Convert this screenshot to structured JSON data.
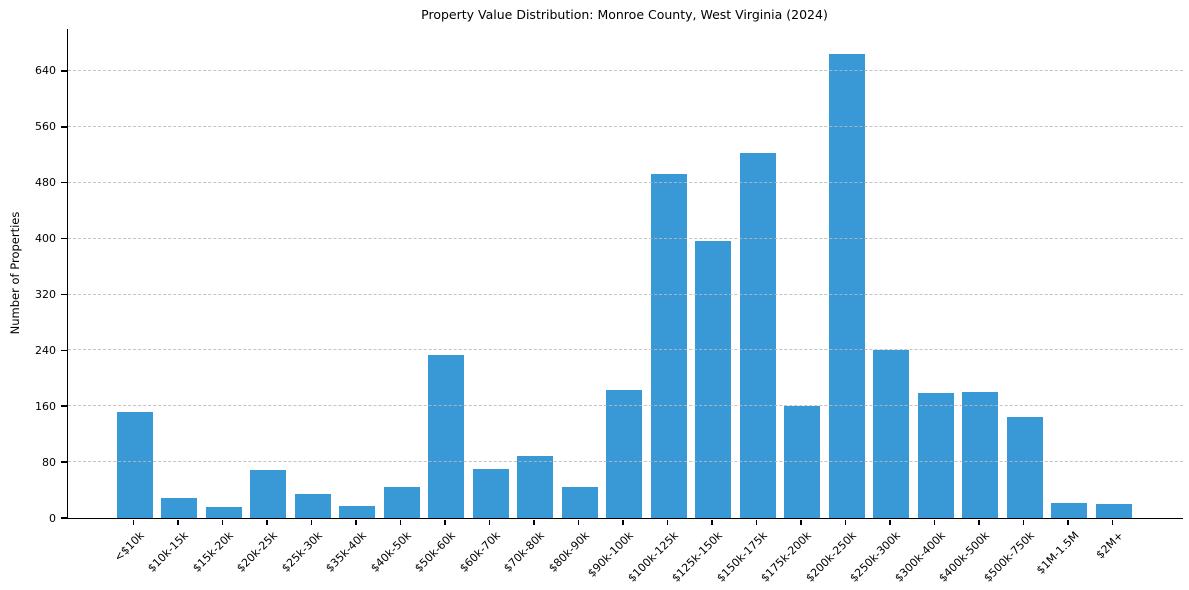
{
  "chart_data": {
    "type": "bar",
    "title": "Property Value Distribution: Monroe County, West Virginia (2024)",
    "ylabel": "Number of Properties",
    "categories": [
      "<$10k",
      "$10k-15k",
      "$15k-20k",
      "$20k-25k",
      "$25k-30k",
      "$35k-40k",
      "$40k-50k",
      "$50k-60k",
      "$60k-70k",
      "$70k-80k",
      "$80k-90k",
      "$90k-100k",
      "$100k-125k",
      "$125k-150k",
      "$150k-175k",
      "$175k-200k",
      "$200k-250k",
      "$250k-300k",
      "$300k-400k",
      "$400k-500k",
      "$500k-750k",
      "$1M-1.5M",
      "$2M+"
    ],
    "values": [
      152,
      28,
      16,
      69,
      34,
      17,
      44,
      234,
      70,
      89,
      45,
      183,
      493,
      396,
      523,
      160,
      664,
      241,
      179,
      181,
      145,
      21,
      20
    ],
    "yticks": [
      0,
      80,
      160,
      240,
      320,
      400,
      480,
      560,
      640
    ],
    "ylim": [
      0,
      700
    ],
    "grid": "horizontal-dashed",
    "legend_position": "none",
    "colors": {
      "bar": "#3899d6",
      "gridline": "#b9b9b9",
      "axis": "#000000",
      "background": "#ffffff"
    }
  }
}
